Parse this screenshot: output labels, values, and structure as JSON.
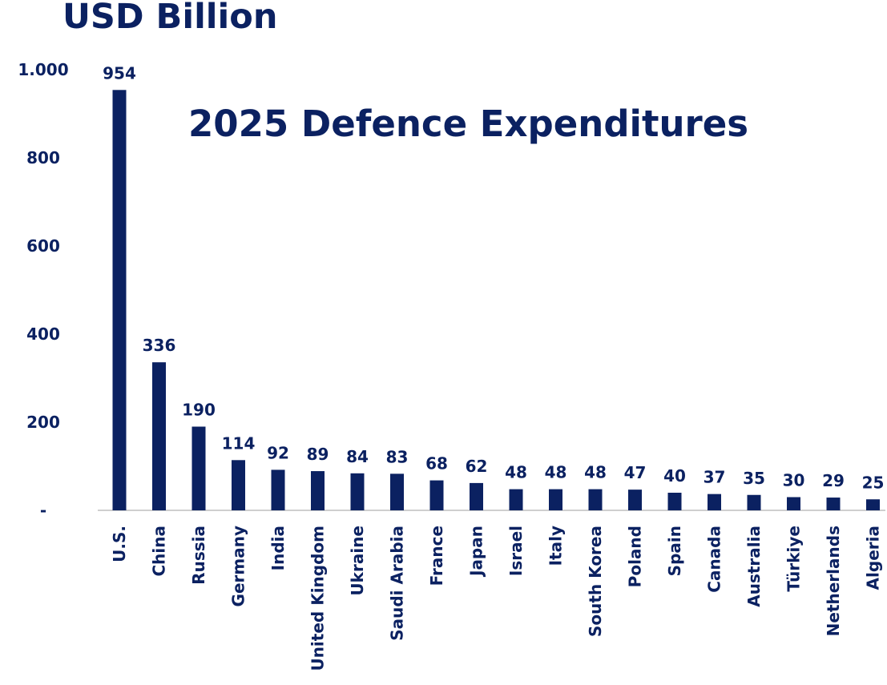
{
  "unit_title": "USD Billion",
  "chart_data": {
    "type": "bar",
    "title": "2025 Defence Expenditures",
    "ylabel": "USD Billion",
    "xlabel": "",
    "categories": [
      "U.S.",
      "China",
      "Russia",
      "Germany",
      "India",
      "United Kingdom",
      "Ukraine",
      "Saudi Arabia",
      "France",
      "Japan",
      "Israel",
      "Italy",
      "South Korea",
      "Poland",
      "Spain",
      "Canada",
      "Australia",
      "Türkiye",
      "Netherlands",
      "Algeria"
    ],
    "values": [
      954,
      336,
      190,
      114,
      92,
      89,
      84,
      83,
      68,
      62,
      48,
      48,
      48,
      47,
      40,
      37,
      35,
      30,
      29,
      25
    ],
    "data_labels": [
      "954",
      "336",
      "190",
      "114",
      "92",
      "89",
      "84",
      "83",
      "68",
      "62",
      "48",
      "48",
      "48",
      "47",
      "40",
      "37",
      "35",
      "30",
      "29",
      "25"
    ],
    "ylim": [
      0,
      1000
    ],
    "yticks": [
      0,
      200,
      400,
      600,
      800,
      1000
    ],
    "ytick_labels": [
      "-",
      "200",
      "400",
      "600",
      "800",
      "1.000"
    ],
    "grid": false,
    "legend": "none",
    "bar_color": "#0b2161",
    "axis_color": "#bfbfbf"
  }
}
